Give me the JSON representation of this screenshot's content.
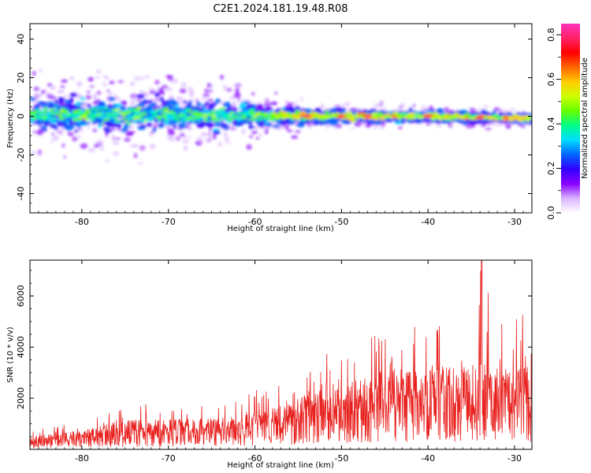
{
  "figure_title": "C2E1.2024.181.19.48.R08",
  "chart_data": [
    {
      "type": "heatmap",
      "title": "",
      "xlabel": "Height of straight line (km)",
      "ylabel": "Frequency (Hz)",
      "xlim": [
        -86,
        -28
      ],
      "ylim": [
        -50,
        48
      ],
      "x_ticks": [
        -80,
        -70,
        -60,
        -50,
        -40,
        -30
      ],
      "x_tick_labels": [
        "-80",
        "-70",
        "-60",
        "-50",
        "-40",
        "-30"
      ],
      "y_ticks": [
        40,
        20,
        0,
        -20,
        -40
      ],
      "y_tick_labels": [
        "40",
        "20",
        "0",
        "-20",
        "-40"
      ],
      "description": "Spectral band centred near 0 Hz, roughly +/-10 Hz wide at -85 km narrowing to about +/-3 Hz near -30 km; peak amplitudes (red) occur near -54, -50, -47, -40 and -34 km",
      "band_profile": {
        "x": [
          -86,
          -80,
          -70,
          -60,
          -50,
          -40,
          -30,
          -28
        ],
        "center_hz": [
          1,
          1,
          0.5,
          0.5,
          0,
          0,
          -1,
          -1
        ],
        "halfwidth_hz": [
          9,
          10,
          9,
          7,
          4,
          3.5,
          3,
          3
        ]
      },
      "peaks_km": [
        -54,
        -50,
        -47,
        -40,
        -34
      ],
      "colorbar": {
        "label": "Normalized spectral amplitude",
        "range": [
          0.0,
          0.85
        ],
        "ticks": [
          0.0,
          0.2,
          0.4,
          0.6,
          0.8
        ],
        "tick_labels": [
          "0.0",
          "0.2",
          "0.4",
          "0.6",
          "0.8"
        ],
        "colors": [
          "#ffffff",
          "#d9b3ff",
          "#8800ff",
          "#3300ff",
          "#0066ff",
          "#00ddff",
          "#00ff88",
          "#66ff00",
          "#ccff00",
          "#ffcc00",
          "#ff6600",
          "#ff0000",
          "#ff2266",
          "#ff33bb"
        ]
      }
    },
    {
      "type": "line",
      "title": "",
      "xlabel": "Height of straight line (km)",
      "ylabel": "SNR (10 * v/v)",
      "xlim": [
        -86,
        -28
      ],
      "ylim": [
        0,
        7400
      ],
      "x_ticks": [
        -80,
        -70,
        -60,
        -50,
        -40,
        -30
      ],
      "x_tick_labels": [
        "-80",
        "-70",
        "-60",
        "-50",
        "-40",
        "-30"
      ],
      "y_ticks": [
        2000,
        4000,
        6000
      ],
      "y_tick_labels": [
        "2000",
        "4000",
        "6000"
      ],
      "series": [
        {
          "name": "SNR",
          "color": "#e8211e",
          "envelope": {
            "x": [
              -86,
              -80,
              -75,
              -70,
              -65,
              -60,
              -55,
              -52,
              -50,
              -45,
              -40,
              -35,
              -34,
              -30,
              -28
            ],
            "mean": [
              300,
              450,
              700,
              700,
              750,
              850,
              1150,
              1700,
              1500,
              1900,
              2000,
              2000,
              2200,
              1900,
              2000
            ],
            "max": [
              700,
              1150,
              1900,
              1700,
              1800,
              2300,
              2700,
              3800,
              3600,
              4700,
              5000,
              4500,
              7400,
              5500,
              5200
            ]
          },
          "peak": {
            "x": -33.8,
            "y": 7400
          }
        }
      ]
    }
  ]
}
